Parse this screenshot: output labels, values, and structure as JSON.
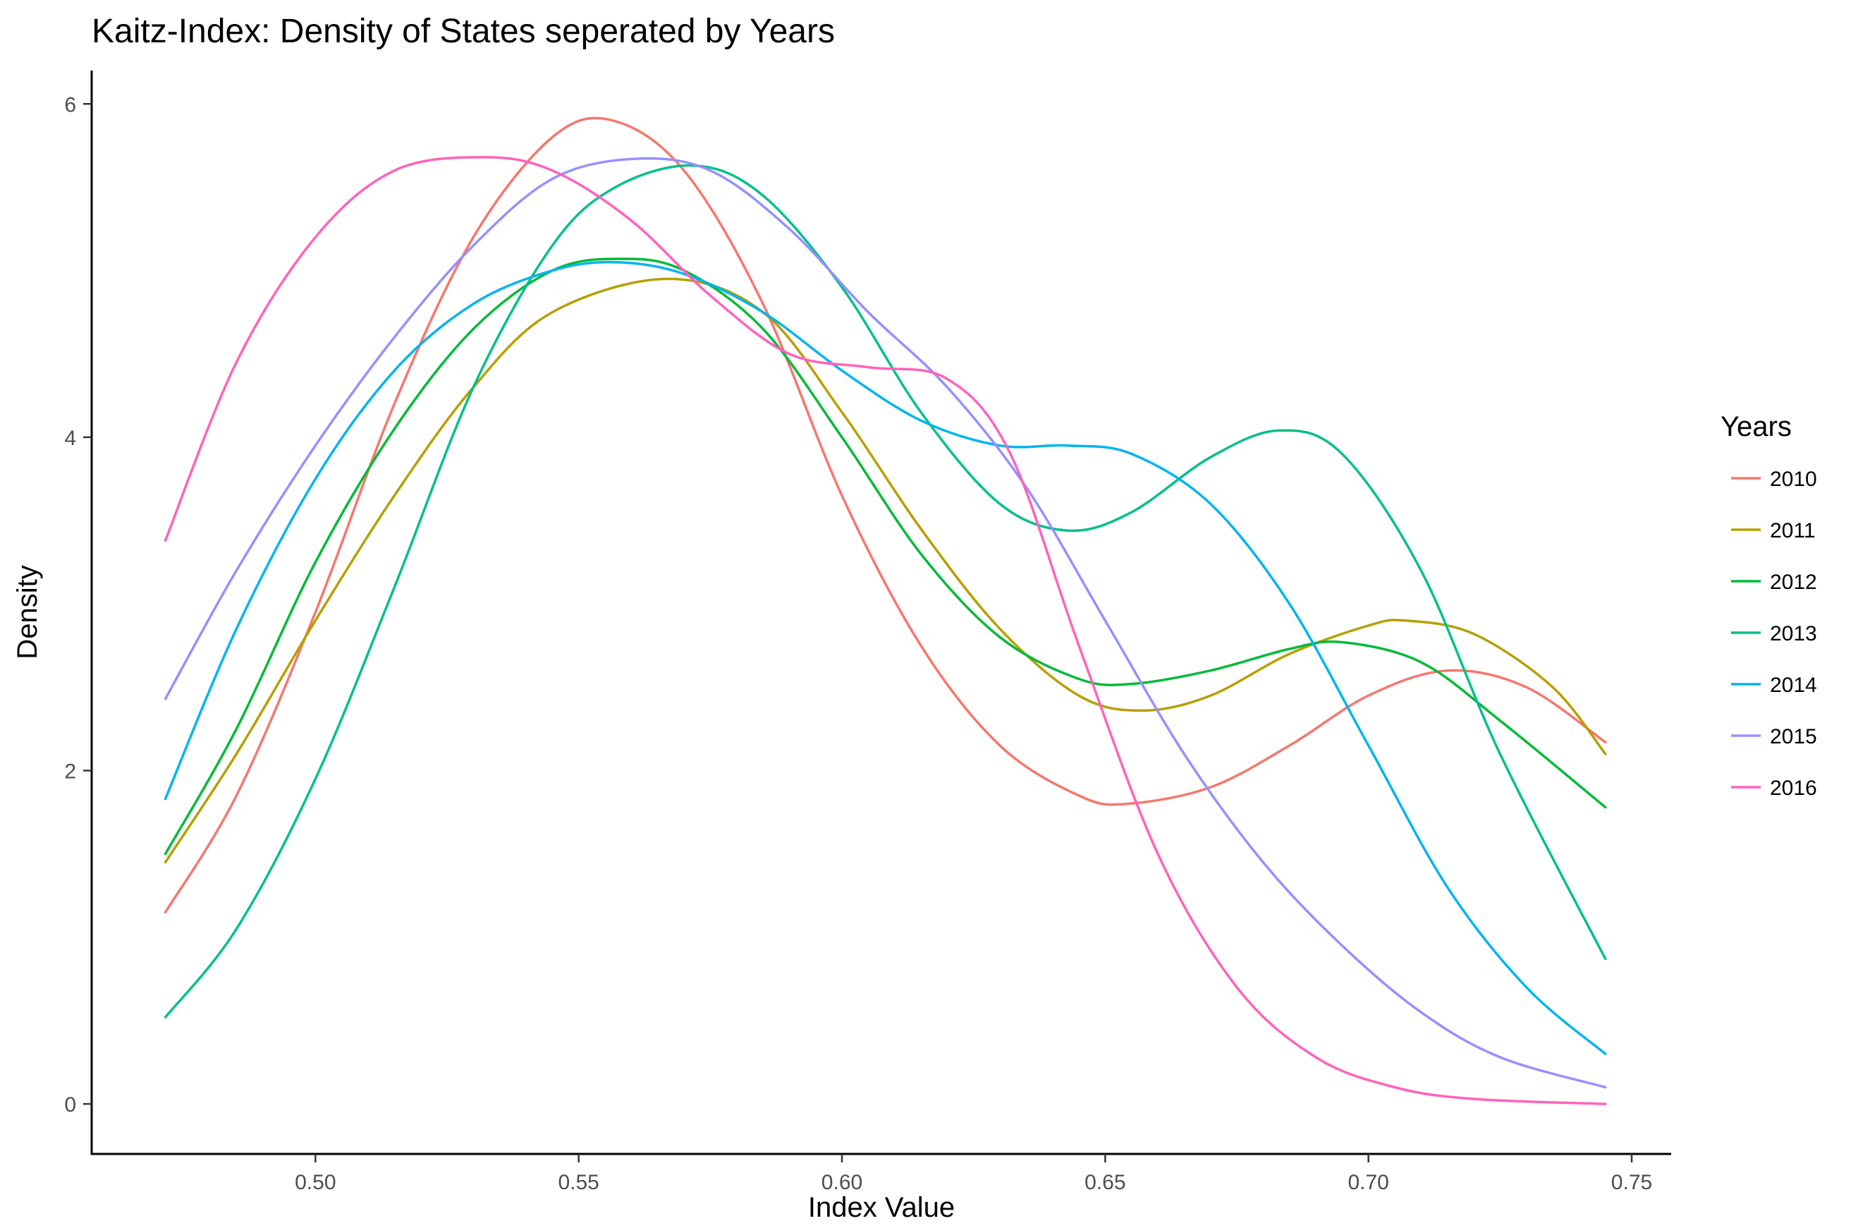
{
  "chart_data": {
    "type": "line",
    "title": "Kaitz-Index: Density of States seperated by Years",
    "xlabel": "Index Value",
    "ylabel": "Density",
    "xlim": [
      0.4575,
      0.7575
    ],
    "ylim": [
      -0.3,
      6.2
    ],
    "xticks": [
      0.5,
      0.55,
      0.6,
      0.65,
      0.7,
      0.75
    ],
    "xtick_labels": [
      "0.50",
      "0.55",
      "0.60",
      "0.65",
      "0.70",
      "0.75"
    ],
    "yticks": [
      0,
      2,
      4,
      6
    ],
    "ytick_labels": [
      "0",
      "2",
      "4",
      "6"
    ],
    "grid": false,
    "legend": {
      "title": "Years",
      "position": "right"
    },
    "series": [
      {
        "name": "2010",
        "color": "#F8766D",
        "x": [
          0.4715,
          0.485,
          0.5,
          0.515,
          0.53,
          0.545,
          0.5565,
          0.57,
          0.585,
          0.6,
          0.615,
          0.63,
          0.645,
          0.654,
          0.67,
          0.685,
          0.7,
          0.715,
          0.73,
          0.745
        ],
        "y": [
          1.15,
          1.85,
          2.95,
          4.2,
          5.2,
          5.8,
          5.9,
          5.6,
          4.8,
          3.65,
          2.75,
          2.15,
          1.85,
          1.8,
          1.9,
          2.15,
          2.45,
          2.6,
          2.5,
          2.17
        ]
      },
      {
        "name": "2011",
        "color": "#B79F00",
        "x": [
          0.4715,
          0.485,
          0.5,
          0.515,
          0.53,
          0.545,
          0.567,
          0.585,
          0.6,
          0.615,
          0.63,
          0.645,
          0.657,
          0.67,
          0.685,
          0.7,
          0.707,
          0.72,
          0.735,
          0.745
        ],
        "y": [
          1.45,
          2.1,
          2.9,
          3.65,
          4.3,
          4.75,
          4.95,
          4.75,
          4.15,
          3.45,
          2.85,
          2.45,
          2.36,
          2.45,
          2.7,
          2.87,
          2.9,
          2.82,
          2.5,
          2.1
        ]
      },
      {
        "name": "2012",
        "color": "#00BA38",
        "x": [
          0.4715,
          0.485,
          0.5,
          0.515,
          0.53,
          0.545,
          0.558,
          0.57,
          0.585,
          0.6,
          0.615,
          0.63,
          0.645,
          0.655,
          0.67,
          0.685,
          0.695,
          0.71,
          0.725,
          0.745
        ],
        "y": [
          1.5,
          2.25,
          3.25,
          4.05,
          4.65,
          5.0,
          5.07,
          5.0,
          4.65,
          4.0,
          3.3,
          2.8,
          2.55,
          2.52,
          2.6,
          2.73,
          2.77,
          2.65,
          2.3,
          1.78
        ]
      },
      {
        "name": "2013",
        "color": "#00C08B",
        "x": [
          0.4715,
          0.485,
          0.5,
          0.515,
          0.53,
          0.545,
          0.557,
          0.572,
          0.585,
          0.6,
          0.615,
          0.63,
          0.643,
          0.655,
          0.67,
          0.683,
          0.695,
          0.71,
          0.725,
          0.745
        ],
        "y": [
          0.52,
          1.05,
          1.95,
          3.1,
          4.3,
          5.15,
          5.5,
          5.63,
          5.45,
          4.9,
          4.15,
          3.6,
          3.44,
          3.55,
          3.88,
          4.04,
          3.9,
          3.2,
          2.1,
          0.87
        ]
      },
      {
        "name": "2014",
        "color": "#00B4F0",
        "x": [
          0.4715,
          0.485,
          0.5,
          0.515,
          0.53,
          0.545,
          0.557,
          0.57,
          0.585,
          0.6,
          0.615,
          0.63,
          0.643,
          0.655,
          0.67,
          0.685,
          0.7,
          0.715,
          0.73,
          0.745
        ],
        "y": [
          1.83,
          2.85,
          3.75,
          4.4,
          4.8,
          5.0,
          5.05,
          4.98,
          4.75,
          4.4,
          4.1,
          3.95,
          3.95,
          3.9,
          3.6,
          3.0,
          2.15,
          1.3,
          0.7,
          0.3
        ]
      },
      {
        "name": "2015",
        "color": "#9590FF",
        "x": [
          0.4715,
          0.485,
          0.5,
          0.515,
          0.53,
          0.545,
          0.5605,
          0.575,
          0.59,
          0.605,
          0.62,
          0.635,
          0.65,
          0.665,
          0.68,
          0.695,
          0.71,
          0.725,
          0.745
        ],
        "y": [
          2.43,
          3.2,
          3.95,
          4.6,
          5.15,
          5.55,
          5.67,
          5.6,
          5.25,
          4.75,
          4.3,
          3.7,
          2.9,
          2.1,
          1.45,
          0.95,
          0.55,
          0.28,
          0.1
        ]
      },
      {
        "name": "2016",
        "color": "#FF62BC",
        "x": [
          0.4715,
          0.485,
          0.5,
          0.515,
          0.532,
          0.545,
          0.56,
          0.575,
          0.59,
          0.605,
          0.62,
          0.632,
          0.645,
          0.66,
          0.675,
          0.69,
          0.705,
          0.72,
          0.745
        ],
        "y": [
          3.38,
          4.45,
          5.2,
          5.6,
          5.68,
          5.6,
          5.3,
          4.85,
          4.5,
          4.42,
          4.35,
          3.9,
          2.75,
          1.5,
          0.7,
          0.28,
          0.1,
          0.03,
          0.0
        ]
      }
    ]
  }
}
